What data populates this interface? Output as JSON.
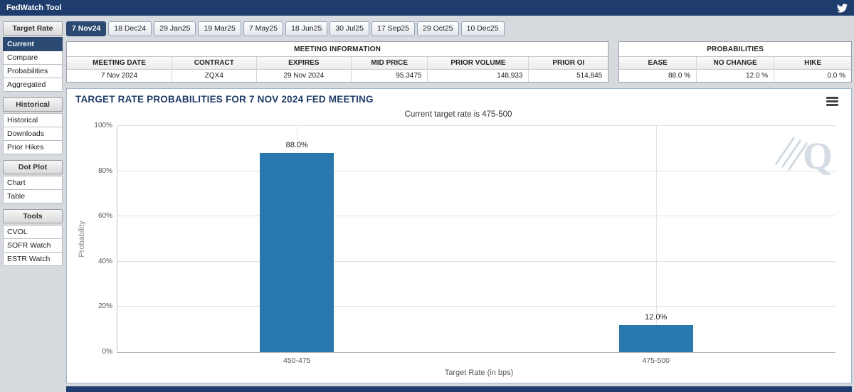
{
  "app": {
    "title": "FedWatch Tool"
  },
  "colors": {
    "navy": "#1e3c6c",
    "navy_selected": "#2b4a72",
    "bar_blue": "#2878ad"
  },
  "sidebar": {
    "sections": [
      {
        "header": "Target Rate",
        "items": [
          {
            "label": "Current",
            "selected": true
          },
          {
            "label": "Compare",
            "selected": false
          },
          {
            "label": "Probabilities",
            "selected": false
          },
          {
            "label": "Aggregated",
            "selected": false
          }
        ]
      },
      {
        "header": "Historical",
        "items": [
          {
            "label": "Historical",
            "selected": false
          },
          {
            "label": "Downloads",
            "selected": false
          },
          {
            "label": "Prior Hikes",
            "selected": false
          }
        ]
      },
      {
        "header": "Dot Plot",
        "items": [
          {
            "label": "Chart",
            "selected": false
          },
          {
            "label": "Table",
            "selected": false
          }
        ]
      },
      {
        "header": "Tools",
        "items": [
          {
            "label": "CVOL",
            "selected": false
          },
          {
            "label": "SOFR Watch",
            "selected": false
          },
          {
            "label": "ESTR Watch",
            "selected": false
          }
        ]
      }
    ]
  },
  "tabs": {
    "selected": "7 Nov24",
    "items": [
      "7 Nov24",
      "18 Dec24",
      "29 Jan25",
      "19 Mar25",
      "7 May25",
      "18 Jun25",
      "30 Jul25",
      "17 Sep25",
      "29 Oct25",
      "10 Dec25"
    ]
  },
  "meeting_info": {
    "title": "MEETING INFORMATION",
    "columns": [
      "MEETING DATE",
      "CONTRACT",
      "EXPIRES",
      "MID PRICE",
      "PRIOR VOLUME",
      "PRIOR OI"
    ],
    "values": [
      "7 Nov 2024",
      "ZQX4",
      "29 Nov 2024",
      "95.3475",
      "148,933",
      "514,845"
    ],
    "align": [
      "center",
      "center",
      "center",
      "right",
      "right",
      "right"
    ],
    "col_flex": [
      152,
      118,
      135,
      105,
      145,
      110
    ]
  },
  "probabilities": {
    "title": "PROBABILITIES",
    "columns": [
      "EASE",
      "NO CHANGE",
      "HIKE"
    ],
    "values": [
      "88.0 %",
      "12.0 %",
      "0.0 %"
    ],
    "align": [
      "right",
      "right",
      "right"
    ],
    "col_flex": [
      1,
      1,
      1
    ]
  },
  "chart_data": {
    "type": "bar",
    "title": "TARGET RATE PROBABILITIES FOR 7 NOV 2024 FED MEETING",
    "subtitle": "Current target rate is 475-500",
    "categories": [
      "450-475",
      "475-500"
    ],
    "values": [
      88.0,
      12.0
    ],
    "value_labels": [
      "88.0%",
      "12.0%"
    ],
    "xlabel": "Target Rate (in bps)",
    "ylabel": "Probability",
    "ylim": [
      0,
      100
    ],
    "yticks": [
      "0%",
      "20%",
      "40%",
      "60%",
      "80%",
      "100%"
    ],
    "grid": true,
    "legend": false,
    "bar_color": "#2878ad"
  }
}
